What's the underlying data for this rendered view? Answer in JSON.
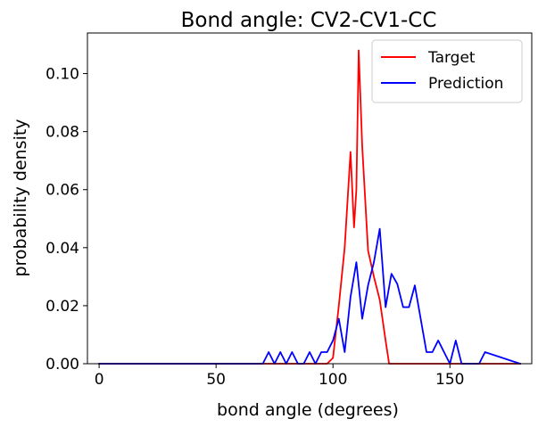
{
  "chart_data": {
    "type": "line",
    "title": "Bond angle: CV2-CV1-CC",
    "xlabel": "bond angle (degrees)",
    "ylabel": "probability density",
    "xlim": [
      -5,
      185
    ],
    "ylim": [
      0,
      0.114
    ],
    "xticks": [
      0,
      50,
      100,
      150
    ],
    "xtick_labels": [
      "0",
      "50",
      "100",
      "150"
    ],
    "yticks": [
      0,
      0.02,
      0.04,
      0.06,
      0.08,
      0.1
    ],
    "ytick_labels": [
      "0.00",
      "0.02",
      "0.04",
      "0.06",
      "0.08",
      "0.10"
    ],
    "grid": false,
    "legend_position": "top-right",
    "series": [
      {
        "name": "Target",
        "color": "#ff0000",
        "x": [
          0,
          95,
          97.5,
          100,
          102.5,
          105,
          107.5,
          109,
          110,
          111,
          112.5,
          115,
          117.5,
          120,
          122.5,
          124,
          180
        ],
        "y": [
          0,
          0,
          0,
          0.002,
          0.02,
          0.04,
          0.073,
          0.047,
          0.06,
          0.108,
          0.075,
          0.039,
          0.03,
          0.022,
          0.008,
          0,
          0
        ]
      },
      {
        "name": "Prediction",
        "color": "#0000ff",
        "x": [
          0,
          70,
          72.5,
          75,
          77.5,
          80,
          82.5,
          85,
          87.5,
          90,
          92.5,
          95,
          97.5,
          100,
          102.5,
          105,
          107.5,
          110,
          112.5,
          115,
          117.5,
          120,
          122.5,
          125,
          127.5,
          130,
          132.5,
          135,
          137.5,
          140,
          142.5,
          145,
          147.5,
          150,
          152.5,
          155,
          157.5,
          160,
          162.5,
          165,
          180
        ],
        "y": [
          0,
          0,
          0.004,
          0,
          0.004,
          0,
          0.004,
          0,
          0,
          0.004,
          0,
          0.004,
          0.004,
          0.008,
          0.0155,
          0.004,
          0.023,
          0.035,
          0.0155,
          0.027,
          0.035,
          0.0465,
          0.0195,
          0.031,
          0.0275,
          0.0195,
          0.0195,
          0.027,
          0.0155,
          0.004,
          0.004,
          0.008,
          0.004,
          0,
          0.008,
          0,
          0,
          0,
          0,
          0.004,
          0
        ]
      }
    ]
  }
}
